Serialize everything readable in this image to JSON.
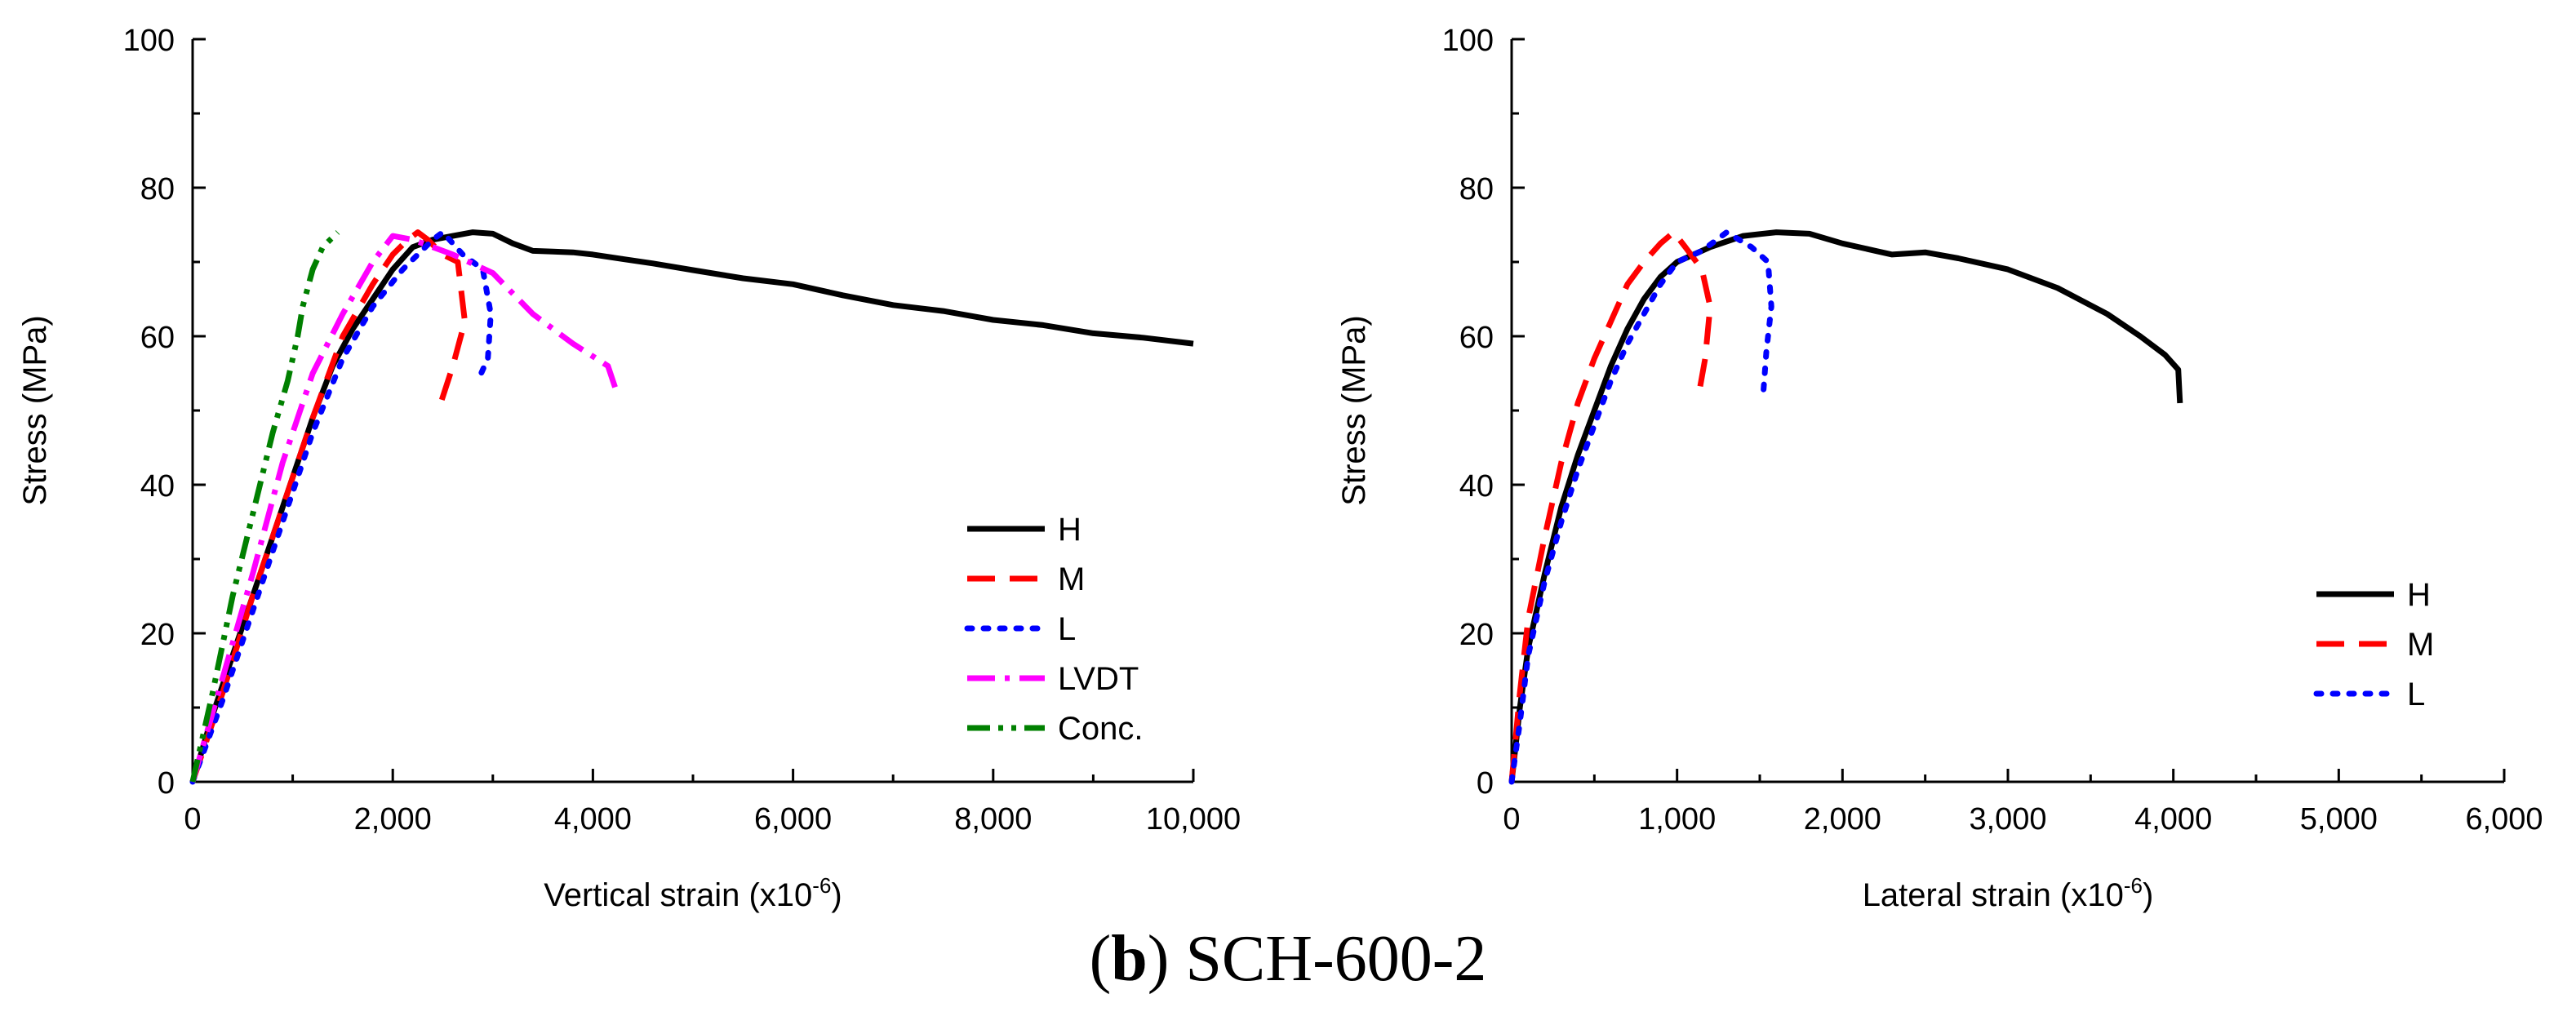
{
  "caption": {
    "letter": "b",
    "text": "SCH-600-2"
  },
  "chart_data": [
    {
      "type": "line",
      "xlabel": "Vertical strain (x10",
      "xlabel_exp": "-6",
      "xlabel_end": ")",
      "ylabel": "Stress (MPa)",
      "xlim": [
        0,
        10000
      ],
      "ylim": [
        0,
        100
      ],
      "xticks": [
        0,
        2000,
        4000,
        6000,
        8000,
        10000
      ],
      "xtick_labels": [
        "0",
        "2,000",
        "4,000",
        "6,000",
        "8,000",
        "10,000"
      ],
      "yticks": [
        0,
        20,
        40,
        60,
        80,
        100
      ],
      "ytick_labels": [
        "0",
        "20",
        "40",
        "60",
        "80",
        "100"
      ],
      "legend_position": "right",
      "series": [
        {
          "name": "H",
          "color": "#000000",
          "dash": "solid",
          "points": [
            [
              0,
              0
            ],
            [
              200,
              9
            ],
            [
              400,
              17
            ],
            [
              600,
              25
            ],
            [
              800,
              33
            ],
            [
              1000,
              41
            ],
            [
              1200,
              49
            ],
            [
              1400,
              56
            ],
            [
              1600,
              61
            ],
            [
              1800,
              65
            ],
            [
              2000,
              69
            ],
            [
              2200,
              72
            ],
            [
              2400,
              73
            ],
            [
              2600,
              73.5
            ],
            [
              2800,
              74
            ],
            [
              3000,
              73.8
            ],
            [
              3200,
              72.5
            ],
            [
              3400,
              71.5
            ],
            [
              3600,
              71.4
            ],
            [
              3800,
              71.3
            ],
            [
              4000,
              71
            ],
            [
              4300,
              70.4
            ],
            [
              4600,
              69.8
            ],
            [
              5000,
              68.9
            ],
            [
              5500,
              67.8
            ],
            [
              6000,
              67
            ],
            [
              6500,
              65.5
            ],
            [
              7000,
              64.2
            ],
            [
              7500,
              63.4
            ],
            [
              8000,
              62.2
            ],
            [
              8500,
              61.5
            ],
            [
              9000,
              60.4
            ],
            [
              9500,
              59.8
            ],
            [
              10000,
              59
            ]
          ]
        },
        {
          "name": "M",
          "color": "#ff0000",
          "dash": "dashed",
          "points": [
            [
              0,
              0
            ],
            [
              300,
              12
            ],
            [
              600,
              25
            ],
            [
              900,
              37
            ],
            [
              1200,
              49
            ],
            [
              1500,
              60
            ],
            [
              1800,
              67
            ],
            [
              2000,
              71
            ],
            [
              2150,
              73
            ],
            [
              2250,
              74
            ],
            [
              2350,
              73
            ],
            [
              2500,
              71
            ],
            [
              2650,
              70
            ],
            [
              2720,
              62
            ],
            [
              2600,
              56
            ],
            [
              2480,
              51
            ]
          ]
        },
        {
          "name": "L",
          "color": "#0000ff",
          "dash": "dotted",
          "points": [
            [
              0,
              0
            ],
            [
              300,
              11
            ],
            [
              600,
              23
            ],
            [
              900,
              35
            ],
            [
              1200,
              47
            ],
            [
              1500,
              57
            ],
            [
              1800,
              64
            ],
            [
              2100,
              69
            ],
            [
              2400,
              73
            ],
            [
              2500,
              74
            ],
            [
              2700,
              71
            ],
            [
              2900,
              69
            ],
            [
              2980,
              63
            ],
            [
              2950,
              57
            ],
            [
              2850,
              54
            ]
          ]
        },
        {
          "name": "LVDT",
          "color": "#ff00ff",
          "dash": "dashdot",
          "points": [
            [
              0,
              0
            ],
            [
              300,
              14
            ],
            [
              600,
              28
            ],
            [
              900,
              43
            ],
            [
              1200,
              55
            ],
            [
              1500,
              63
            ],
            [
              1800,
              70
            ],
            [
              2000,
              73.5
            ],
            [
              2200,
              73
            ],
            [
              2600,
              71
            ],
            [
              3000,
              68.5
            ],
            [
              3400,
              63
            ],
            [
              3800,
              59
            ],
            [
              4150,
              56
            ],
            [
              4250,
              52
            ]
          ]
        },
        {
          "name": "Conc.",
          "color": "#008000",
          "dash": "dashdotdot",
          "points": [
            [
              0,
              0
            ],
            [
              200,
              12
            ],
            [
              400,
              25
            ],
            [
              600,
              36
            ],
            [
              800,
              47
            ],
            [
              950,
              54
            ],
            [
              1050,
              60
            ],
            [
              1100,
              64
            ],
            [
              1200,
              69
            ],
            [
              1300,
              72
            ],
            [
              1450,
              74
            ]
          ]
        }
      ]
    },
    {
      "type": "line",
      "xlabel": "Lateral strain (x10",
      "xlabel_exp": "-6",
      "xlabel_end": ")",
      "ylabel": "Stress (MPa)",
      "xlim": [
        0,
        6000
      ],
      "ylim": [
        0,
        100
      ],
      "xticks": [
        0,
        1000,
        2000,
        3000,
        4000,
        5000,
        6000
      ],
      "xtick_labels": [
        "0",
        "1,000",
        "2,000",
        "3,000",
        "4,000",
        "5,000",
        "6,000"
      ],
      "yticks": [
        0,
        20,
        40,
        60,
        80,
        100
      ],
      "ytick_labels": [
        "0",
        "20",
        "40",
        "60",
        "80",
        "100"
      ],
      "legend_position": "right",
      "series": [
        {
          "name": "H",
          "color": "#000000",
          "dash": "solid",
          "points": [
            [
              0,
              0
            ],
            [
              50,
              10
            ],
            [
              100,
              18
            ],
            [
              200,
              28
            ],
            [
              300,
              37
            ],
            [
              400,
              44
            ],
            [
              500,
              50
            ],
            [
              600,
              56
            ],
            [
              700,
              61
            ],
            [
              800,
              65
            ],
            [
              900,
              68
            ],
            [
              1000,
              70
            ],
            [
              1200,
              72
            ],
            [
              1400,
              73.5
            ],
            [
              1600,
              74
            ],
            [
              1800,
              73.8
            ],
            [
              2000,
              72.5
            ],
            [
              2200,
              71.5
            ],
            [
              2300,
              71
            ],
            [
              2500,
              71.3
            ],
            [
              2700,
              70.5
            ],
            [
              3000,
              69
            ],
            [
              3300,
              66.5
            ],
            [
              3600,
              63
            ],
            [
              3800,
              60
            ],
            [
              3950,
              57.5
            ],
            [
              4030,
              55.5
            ],
            [
              4040,
              51
            ]
          ]
        },
        {
          "name": "M",
          "color": "#ff0000",
          "dash": "dashed",
          "points": [
            [
              0,
              0
            ],
            [
              50,
              12
            ],
            [
              100,
              22
            ],
            [
              200,
              33
            ],
            [
              300,
              43
            ],
            [
              400,
              51
            ],
            [
              500,
              57
            ],
            [
              600,
              62
            ],
            [
              700,
              67
            ],
            [
              800,
              70
            ],
            [
              900,
              72.5
            ],
            [
              980,
              74
            ],
            [
              1050,
              72
            ],
            [
              1150,
              69
            ],
            [
              1200,
              64
            ],
            [
              1170,
              57
            ],
            [
              1130,
              52
            ]
          ]
        },
        {
          "name": "L",
          "color": "#0000ff",
          "dash": "dotted",
          "points": [
            [
              0,
              0
            ],
            [
              50,
              8
            ],
            [
              100,
              17
            ],
            [
              200,
              27
            ],
            [
              300,
              35
            ],
            [
              400,
              42
            ],
            [
              500,
              48
            ],
            [
              600,
              54
            ],
            [
              700,
              59
            ],
            [
              800,
              63
            ],
            [
              900,
              67
            ],
            [
              1000,
              70
            ],
            [
              1150,
              71.5
            ],
            [
              1300,
              74
            ],
            [
              1450,
              72
            ],
            [
              1550,
              70
            ],
            [
              1570,
              64
            ],
            [
              1540,
              58
            ],
            [
              1520,
              52
            ]
          ]
        }
      ]
    }
  ]
}
